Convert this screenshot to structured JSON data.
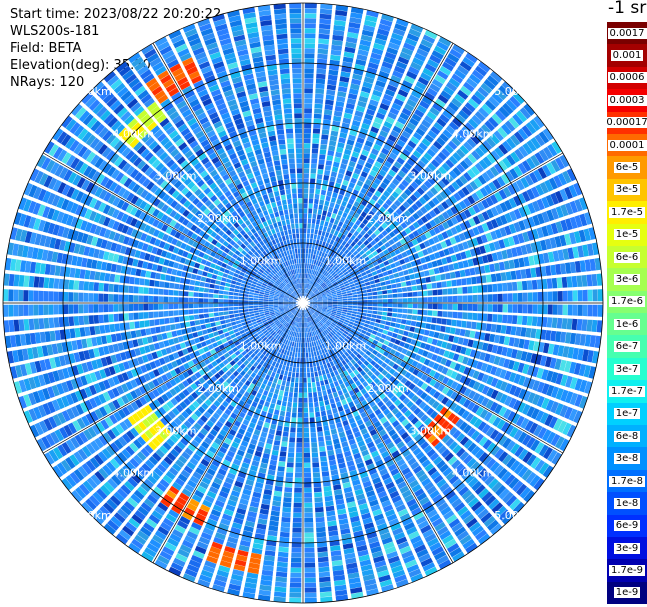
{
  "header": {
    "start_time": "Start time: 2023/08/22 20:20:22",
    "instrument": "WLS200s-181",
    "field": "Field: BETA",
    "elevation": "Elevation(deg): 35.30",
    "nrays": "NRays: 120"
  },
  "colorbar": {
    "unit": "-1 sr",
    "entries": [
      {
        "label": "0.0017",
        "color": "#7a0000"
      },
      {
        "label": "0.001",
        "color": "#a40000"
      },
      {
        "label": "0.0006",
        "color": "#d20000"
      },
      {
        "label": "0.0003",
        "color": "#f50000"
      },
      {
        "label": "0.00017",
        "color": "#ff3000"
      },
      {
        "label": "0.0001",
        "color": "#ff6a00"
      },
      {
        "label": "6e-5",
        "color": "#ff9a00"
      },
      {
        "label": "3e-5",
        "color": "#ffc400"
      },
      {
        "label": "1.7e-5",
        "color": "#ffee00"
      },
      {
        "label": "1e-5",
        "color": "#e6ff10"
      },
      {
        "label": "6e-6",
        "color": "#c6ff30"
      },
      {
        "label": "3e-6",
        "color": "#a6ff50"
      },
      {
        "label": "1.7e-6",
        "color": "#86ff70"
      },
      {
        "label": "1e-6",
        "color": "#66ff90"
      },
      {
        "label": "6e-7",
        "color": "#46ffb0"
      },
      {
        "label": "3e-7",
        "color": "#26ffd0"
      },
      {
        "label": "1.7e-7",
        "color": "#10f0f0"
      },
      {
        "label": "1e-7",
        "color": "#00d0ff"
      },
      {
        "label": "6e-8",
        "color": "#00b0ff"
      },
      {
        "label": "3e-8",
        "color": "#0090ff"
      },
      {
        "label": "1.7e-8",
        "color": "#0070ff"
      },
      {
        "label": "1e-8",
        "color": "#0050ff"
      },
      {
        "label": "6e-9",
        "color": "#0030ff"
      },
      {
        "label": "3e-9",
        "color": "#0010e0"
      },
      {
        "label": "1.7e-9",
        "color": "#0000b0"
      },
      {
        "label": "1e-9",
        "color": "#000080"
      }
    ]
  },
  "chart_data": {
    "type": "polar-ppi",
    "field": "BETA",
    "elevation_deg": 35.3,
    "n_rays": 120,
    "max_range_km": 5.0,
    "range_ring_labels": [
      "1.00km",
      "2.00km",
      "3.00km",
      "4.00km",
      "5.00km"
    ],
    "colormap": "jet",
    "dominant_value": "1e-8 to 6e-8",
    "highlights": [
      {
        "azimuth_deg": 330,
        "range_km": 4.3,
        "value": "1e-4 to 3e-4"
      },
      {
        "azimuth_deg": 318,
        "range_km": 4.0,
        "value": "1.7e-5"
      },
      {
        "azimuth_deg": 210,
        "range_km": 3.9,
        "value": "6e-5"
      },
      {
        "azimuth_deg": 195,
        "range_km": 4.4,
        "value": "1e-4"
      },
      {
        "azimuth_deg": 230,
        "range_km": 3.3,
        "value": "3e-5"
      },
      {
        "azimuth_deg": 132,
        "range_km": 3.1,
        "value": "6e-5"
      }
    ]
  }
}
